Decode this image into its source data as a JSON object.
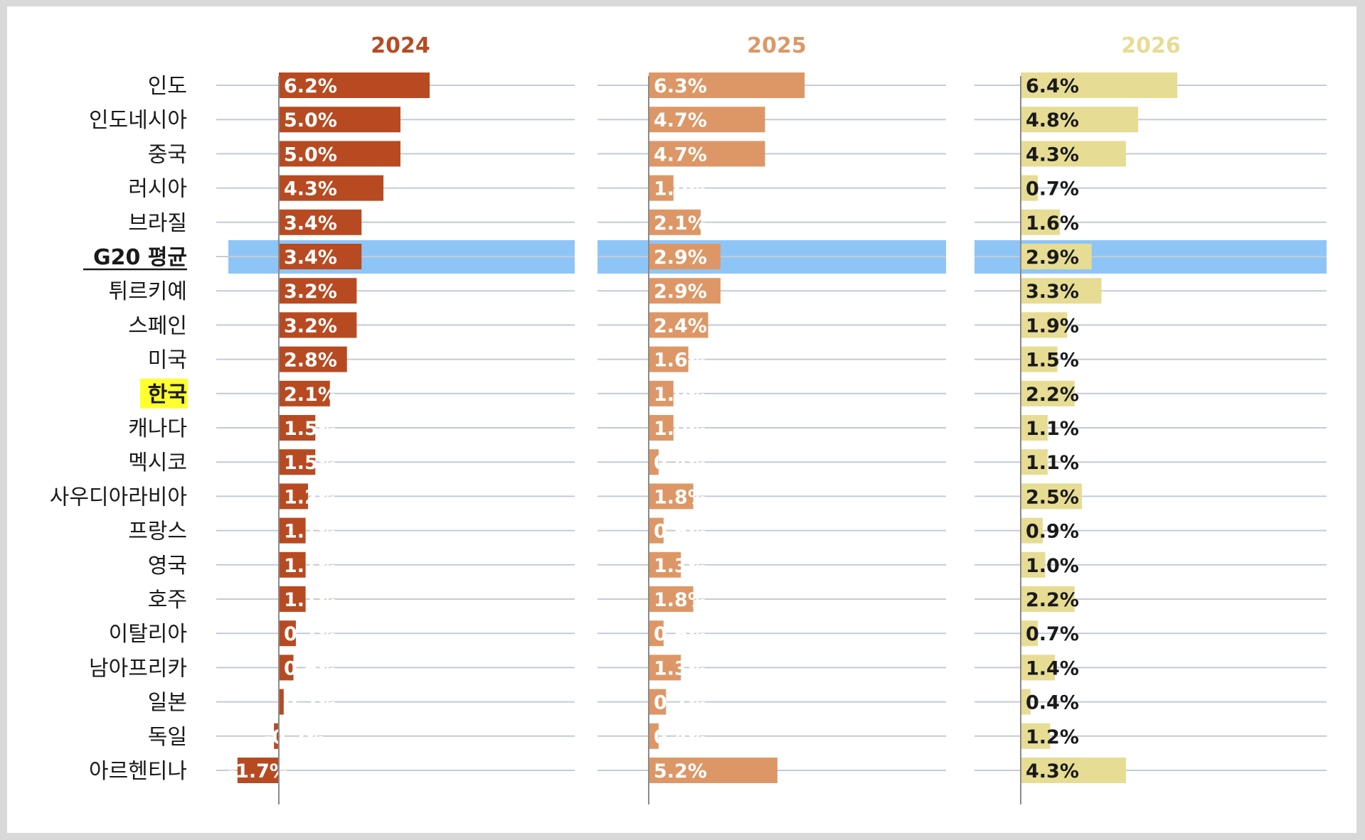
{
  "chart_data": {
    "type": "bar",
    "orientation": "horizontal",
    "highlight_row": "G20 평균",
    "emphasized_row": "한국",
    "categories": [
      "인도",
      "인도네시아",
      "중국",
      "러시아",
      "브라질",
      "G20 평균",
      "튀르키예",
      "스페인",
      "미국",
      "한국",
      "캐나다",
      "멕시코",
      "사우디아라비아",
      "프랑스",
      "영국",
      "호주",
      "이탈리아",
      "남아프리카",
      "일본",
      "독일",
      "아르헨티나"
    ],
    "series": [
      {
        "name": "2024",
        "color": "#b84a22",
        "values": [
          6.2,
          5.0,
          5.0,
          4.3,
          3.4,
          3.4,
          3.2,
          3.2,
          2.8,
          2.1,
          1.5,
          1.5,
          1.2,
          1.1,
          1.1,
          1.1,
          0.7,
          0.6,
          0.2,
          -0.2,
          -1.7
        ],
        "labels": [
          "6.2%",
          "5.0%",
          "5.0%",
          "4.3%",
          "3.4%",
          "3.4%",
          "3.2%",
          "3.2%",
          "2.8%",
          "2.1%",
          "1.5%",
          "1.5%",
          "1.2%",
          "1.1%",
          "1.1%",
          "1.1%",
          "0.7%",
          "0.6%",
          "0.2%",
          "-0.2%",
          "-1.7%"
        ]
      },
      {
        "name": "2025",
        "color": "#dd9766",
        "values": [
          6.3,
          4.7,
          4.7,
          1.0,
          2.1,
          2.9,
          2.9,
          2.4,
          1.6,
          1.0,
          1.0,
          0.4,
          1.8,
          0.6,
          1.3,
          1.8,
          0.6,
          1.3,
          0.7,
          0.4,
          5.2
        ],
        "labels": [
          "6.3%",
          "4.7%",
          "4.7%",
          "1.0%",
          "2.1%",
          "2.9%",
          "2.9%",
          "2.4%",
          "1.6%",
          "1.0%",
          "1.0%",
          "0.4%",
          "1.8%",
          "0.6%",
          "1.3%",
          "1.8%",
          "0.6%",
          "1.3%",
          "0.7%",
          "0.4%",
          "5.2%"
        ]
      },
      {
        "name": "2026",
        "color": "#e6dc93",
        "values": [
          6.4,
          4.8,
          4.3,
          0.7,
          1.6,
          2.9,
          3.3,
          1.9,
          1.5,
          2.2,
          1.1,
          1.1,
          2.5,
          0.9,
          1.0,
          2.2,
          0.7,
          1.4,
          0.4,
          1.2,
          4.3
        ],
        "labels": [
          "6.4%",
          "4.8%",
          "4.3%",
          "0.7%",
          "1.6%",
          "2.9%",
          "3.3%",
          "1.9%",
          "1.5%",
          "2.2%",
          "1.1%",
          "1.1%",
          "2.5%",
          "0.9%",
          "1.0%",
          "2.2%",
          "0.7%",
          "1.4%",
          "0.4%",
          "1.2%",
          "4.3%"
        ]
      }
    ],
    "colors": {
      "header_2024": "#b84a22",
      "header_2025": "#dd9766",
      "header_2026": "#e6dc93",
      "highlight_band": "#8ec5f7",
      "korea_highlight": "#ffff2e",
      "gridline": "#c4cbd6",
      "axis": "#8a8a8a"
    }
  }
}
